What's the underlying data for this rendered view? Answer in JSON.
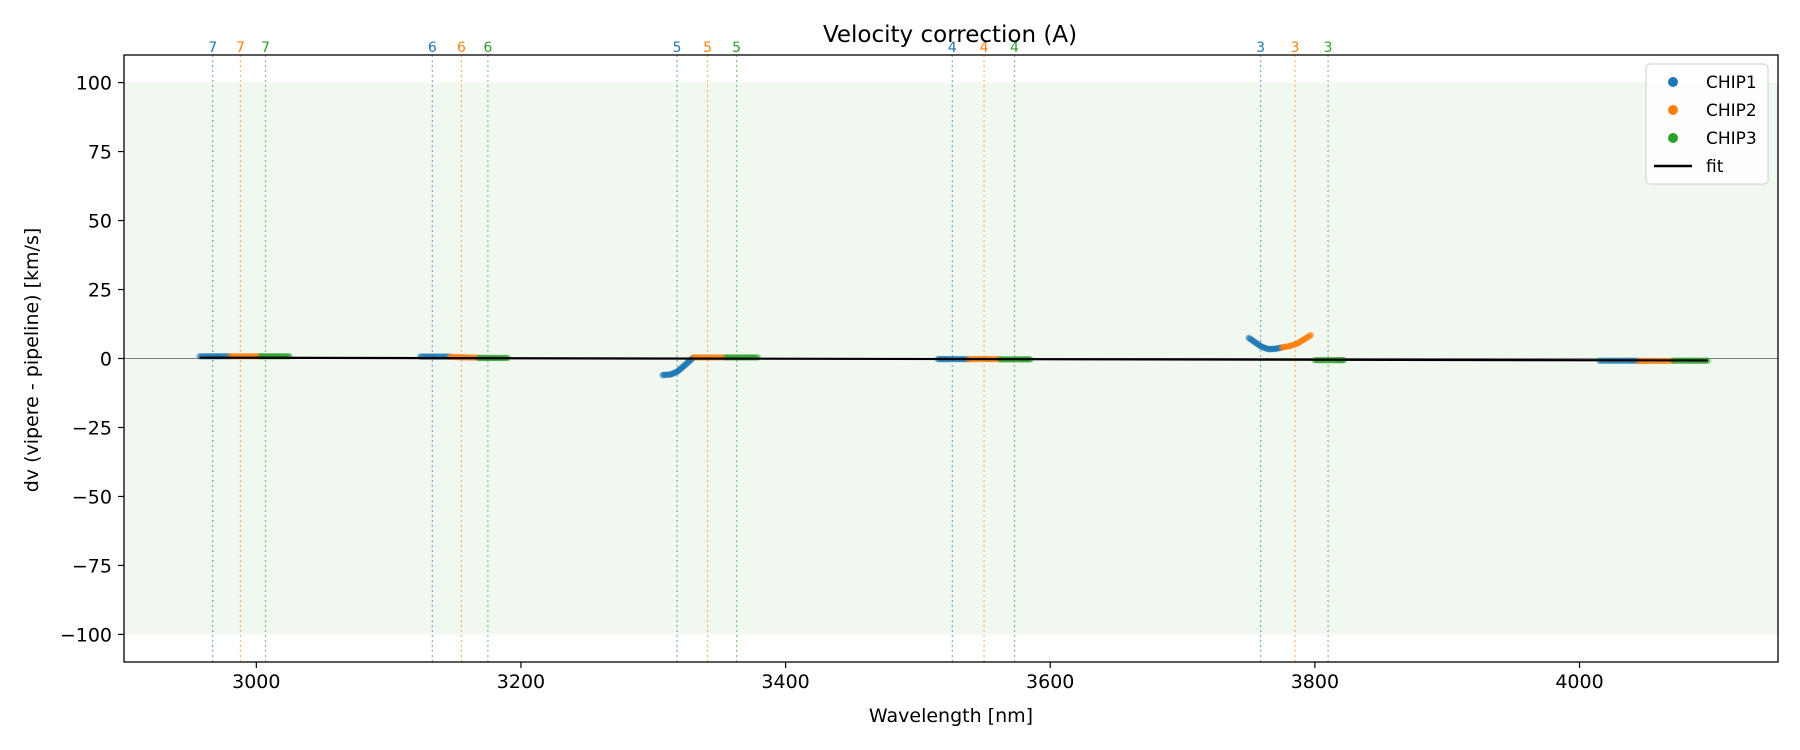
{
  "chart_data": {
    "type": "scatter",
    "title": "Velocity correction (A)",
    "xlabel": "Wavelength [nm]",
    "ylabel": "dv (vipere - pipeline) [km/s]",
    "xlim": [
      2900,
      4150
    ],
    "ylim": [
      -110,
      110
    ],
    "xticks": [
      3000,
      3200,
      3400,
      3600,
      3800,
      4000
    ],
    "yticks": [
      100,
      75,
      50,
      25,
      0,
      -25,
      -50,
      -75,
      -100
    ],
    "ytick_labels": [
      "100",
      "75",
      "50",
      "25",
      "0",
      "−25",
      "−50",
      "−75",
      "−100"
    ],
    "shaded_band": [
      -100,
      100
    ],
    "zero_line": 0,
    "colors": {
      "CHIP1": "#1f77b4",
      "CHIP2": "#ff7f0e",
      "CHIP3": "#2ca02c",
      "fit": "#000000",
      "band": "#2ca02c"
    },
    "legend": {
      "placement": "top-right",
      "entries": [
        "CHIP1",
        "CHIP2",
        "CHIP3",
        "fit"
      ]
    },
    "order_markers": [
      {
        "label": "7",
        "chip": "CHIP1",
        "x": 2967
      },
      {
        "label": "7",
        "chip": "CHIP2",
        "x": 2988
      },
      {
        "label": "7",
        "chip": "CHIP3",
        "x": 3007
      },
      {
        "label": "6",
        "chip": "CHIP1",
        "x": 3133
      },
      {
        "label": "6",
        "chip": "CHIP2",
        "x": 3155
      },
      {
        "label": "6",
        "chip": "CHIP3",
        "x": 3175
      },
      {
        "label": "5",
        "chip": "CHIP1",
        "x": 3318
      },
      {
        "label": "5",
        "chip": "CHIP2",
        "x": 3341
      },
      {
        "label": "5",
        "chip": "CHIP3",
        "x": 3363
      },
      {
        "label": "4",
        "chip": "CHIP1",
        "x": 3526
      },
      {
        "label": "4",
        "chip": "CHIP2",
        "x": 3550
      },
      {
        "label": "4",
        "chip": "CHIP3",
        "x": 3573
      },
      {
        "label": "3",
        "chip": "CHIP1",
        "x": 3759
      },
      {
        "label": "3",
        "chip": "CHIP2",
        "x": 3785
      },
      {
        "label": "3",
        "chip": "CHIP3",
        "x": 3810
      }
    ],
    "series": [
      {
        "name": "CHIP1",
        "segments": [
          {
            "x": [
              2957,
              2965,
              2972,
              2980
            ],
            "y": [
              0.8,
              0.8,
              0.8,
              0.8
            ]
          },
          {
            "x": [
              3124,
              3131,
              3138,
              3146
            ],
            "y": [
              0.7,
              0.7,
              0.7,
              0.7
            ]
          },
          {
            "x": [
              3307,
              3313,
              3318,
              3322,
              3326,
              3330
            ],
            "y": [
              -6.0,
              -5.8,
              -4.8,
              -3.2,
              -1.5,
              0.2
            ]
          },
          {
            "x": [
              3515,
              3522,
              3530,
              3538
            ],
            "y": [
              -0.2,
              -0.2,
              -0.2,
              -0.2
            ]
          },
          {
            "x": [
              3750,
              3755,
              3760,
              3765,
              3770,
              3775
            ],
            "y": [
              7.5,
              5.8,
              4.2,
              3.4,
              3.5,
              4.0
            ]
          },
          {
            "x": [
              4015,
              4025,
              4035,
              4044
            ],
            "y": [
              -0.8,
              -0.8,
              -0.8,
              -0.8
            ]
          }
        ]
      },
      {
        "name": "CHIP2",
        "segments": [
          {
            "x": [
              2980,
              2988,
              2996,
              3003
            ],
            "y": [
              0.8,
              0.8,
              0.8,
              0.8
            ]
          },
          {
            "x": [
              3146,
              3153,
              3160,
              3168
            ],
            "y": [
              0.6,
              0.5,
              0.4,
              0.3
            ]
          },
          {
            "x": [
              3330,
              3338,
              3346,
              3355
            ],
            "y": [
              0.4,
              0.4,
              0.4,
              0.4
            ]
          },
          {
            "x": [
              3538,
              3546,
              3554,
              3562
            ],
            "y": [
              -0.2,
              -0.2,
              -0.2,
              -0.2
            ]
          },
          {
            "x": [
              3775,
              3781,
              3787,
              3792,
              3797
            ],
            "y": [
              4.0,
              4.5,
              5.5,
              7.0,
              8.5
            ]
          },
          {
            "x": [
              4044,
              4052,
              4061,
              4071
            ],
            "y": [
              -0.9,
              -0.9,
              -0.9,
              -0.9
            ]
          }
        ]
      },
      {
        "name": "CHIP3",
        "segments": [
          {
            "x": [
              3003,
              3010,
              3017,
              3025
            ],
            "y": [
              0.8,
              0.8,
              0.8,
              0.8
            ]
          },
          {
            "x": [
              3168,
              3175,
              3182,
              3190
            ],
            "y": [
              0.2,
              0.2,
              0.2,
              0.2
            ]
          },
          {
            "x": [
              3355,
              3363,
              3371,
              3379
            ],
            "y": [
              0.4,
              0.4,
              0.4,
              0.4
            ]
          },
          {
            "x": [
              3562,
              3570,
              3578,
              3585
            ],
            "y": [
              -0.3,
              -0.3,
              -0.3,
              -0.3
            ]
          },
          {
            "x": [
              3800,
              3808,
              3816,
              3822
            ],
            "y": [
              -0.6,
              -0.6,
              -0.6,
              -0.6
            ]
          },
          {
            "x": [
              4071,
              4080,
              4088,
              4097
            ],
            "y": [
              -0.8,
              -0.8,
              -0.8,
              -0.8
            ]
          }
        ]
      },
      {
        "name": "fit",
        "x": [
          2957,
          4097
        ],
        "y": [
          0.3,
          -0.7
        ]
      }
    ]
  }
}
